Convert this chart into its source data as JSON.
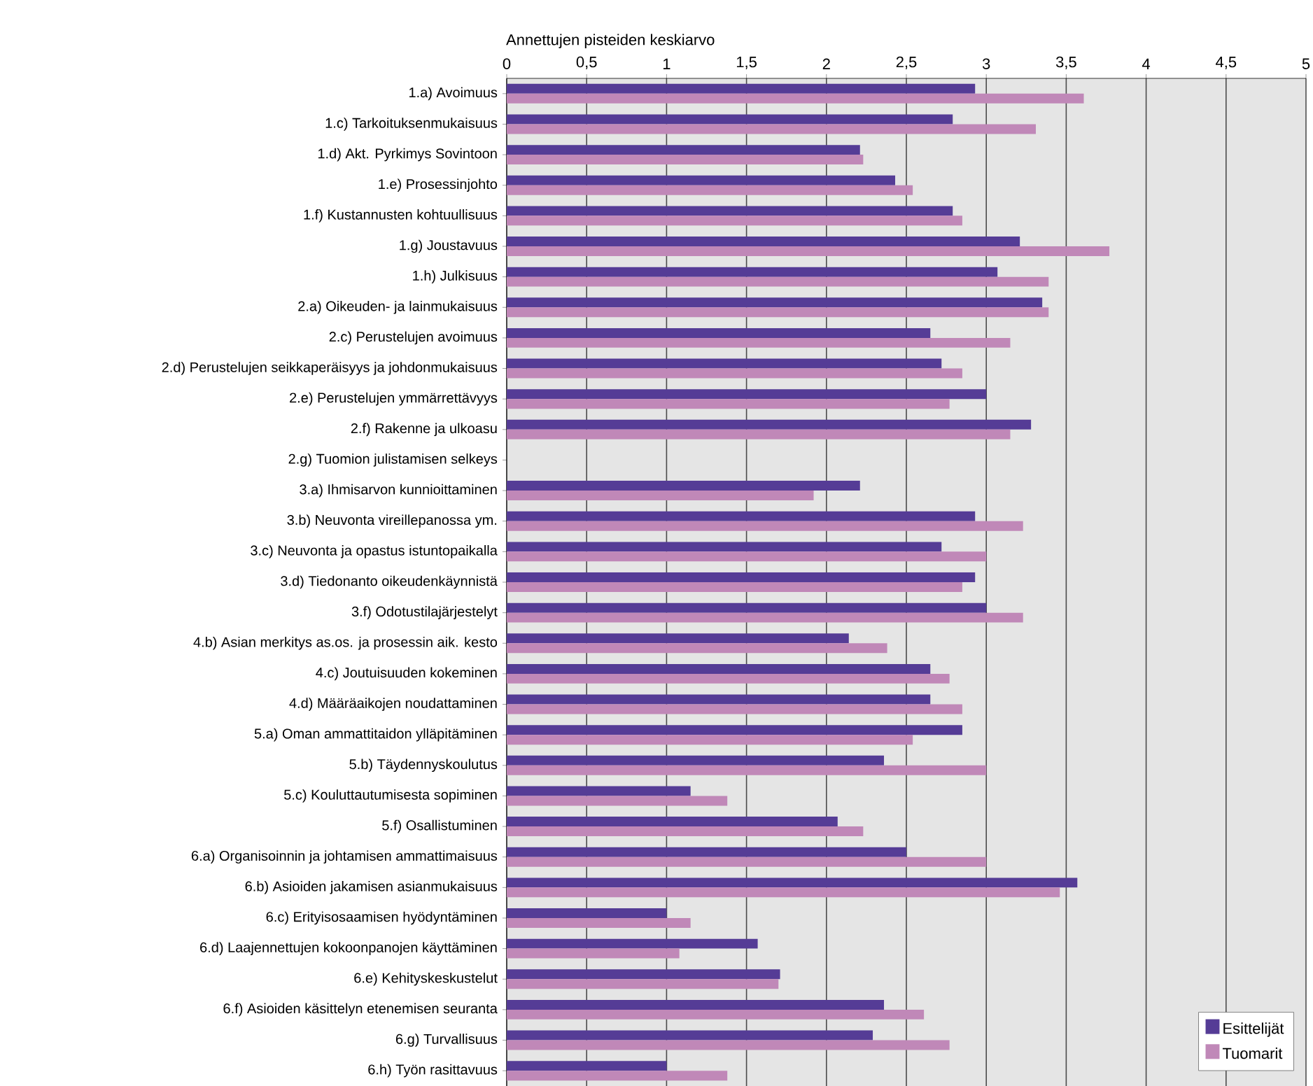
{
  "chart_data": {
    "type": "bar",
    "orientation": "horizontal",
    "xlabel": "Annettujen pisteiden keskiarvo",
    "categories": [
      "1.a) Avoimuus",
      "1.c) Tarkoituksenmukaisuus",
      "1.d) Akt. Pyrkimys Sovintoon",
      "1.e) Prosessinjohto",
      "1.f) Kustannusten kohtuullisuus",
      "1.g) Joustavuus",
      "1.h) Julkisuus",
      "2.a) Oikeuden- ja lainmukaisuus",
      "2.c) Perustelujen avoimuus",
      "2.d) Perustelujen seikkaperäisyys ja johdonmukaisuus",
      "2.e) Perustelujen ymmärrettävyys",
      "2.f) Rakenne ja ulkoasu",
      "2.g) Tuomion julistamisen selkeys",
      "3.a) Ihmisarvon kunnioittaminen",
      "3.b) Neuvonta vireillepanossa ym.",
      "3.c) Neuvonta ja opastus istuntopaikalla",
      "3.d) Tiedonanto oikeudenkäynnistä",
      "3.f) Odotustilajärjestelyt",
      "4.b) Asian merkitys as.os. ja prosessin aik. kesto",
      "4.c) Joutuisuuden kokeminen",
      "4.d) Määräaikojen noudattaminen",
      "5.a) Oman ammattitaidon ylläpitäminen",
      "5.b) Täydennyskoulutus",
      "5.c) Kouluttautumisesta sopiminen",
      "5.f) Osallistuminen",
      "6.a) Organisoinnin ja johtamisen ammattimaisuus",
      "6.b) Asioiden jakamisen asianmukaisuus",
      "6.c) Erityisosaamisen hyödyntäminen",
      "6.d) Laajennettujen kokoonpanojen käyttäminen",
      "6.e) Kehityskeskustelut",
      "6.f) Asioiden käsittelyn etenemisen seuranta",
      "6.g) Turvallisuus",
      "6.h) Työn rasittavuus"
    ],
    "series": [
      {
        "name": "Esittelijät",
        "color": "#553c96",
        "values": [
          2.93,
          2.79,
          2.21,
          2.43,
          2.79,
          3.21,
          3.07,
          3.35,
          2.65,
          2.72,
          3.0,
          3.28,
          null,
          2.21,
          2.93,
          2.72,
          2.93,
          3.0,
          2.14,
          2.65,
          2.65,
          2.85,
          2.36,
          1.15,
          2.07,
          2.5,
          3.57,
          1.0,
          1.57,
          1.71,
          2.36,
          2.29,
          1.0
        ]
      },
      {
        "name": "Tuomarit",
        "color": "#c088b8",
        "values": [
          3.61,
          3.31,
          2.23,
          2.54,
          2.85,
          3.77,
          3.39,
          3.39,
          3.15,
          2.85,
          2.77,
          3.15,
          null,
          1.92,
          3.23,
          3.0,
          2.85,
          3.23,
          2.38,
          2.77,
          2.85,
          2.54,
          3.0,
          1.38,
          2.23,
          3.0,
          3.46,
          1.15,
          1.08,
          1.7,
          2.61,
          2.77,
          1.38
        ]
      }
    ],
    "xlim": [
      0,
      5
    ],
    "xticks": [
      0,
      {
        "value": 0.5,
        "label": "0,5"
      },
      1,
      {
        "value": 1.5,
        "label": "1,5"
      },
      2,
      {
        "value": 2.5,
        "label": "2,5"
      },
      3,
      {
        "value": 3.5,
        "label": "3,5"
      },
      4,
      {
        "value": 4.5,
        "label": "4,5"
      },
      5
    ],
    "grid": "x",
    "legend": "bottom right"
  }
}
